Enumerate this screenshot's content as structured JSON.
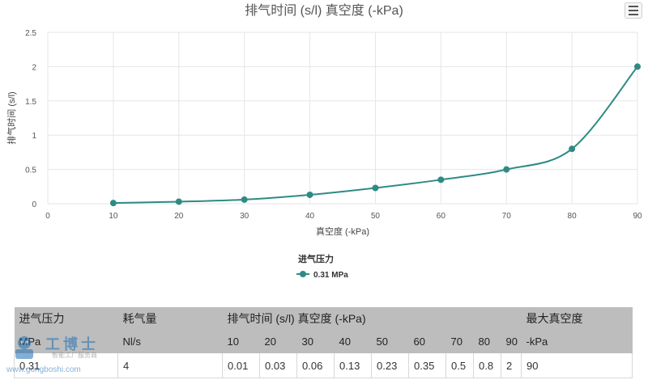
{
  "chart_data": {
    "type": "line",
    "title": "排气时间 (s/l) 真空度 (-kPa)",
    "xlabel": "真空度 (-kPa)",
    "ylabel": "排气时间 (s/l)",
    "xlim": [
      0,
      90
    ],
    "ylim": [
      0,
      2.5
    ],
    "x_ticks": [
      "0",
      "10",
      "20",
      "30",
      "40",
      "50",
      "60",
      "70",
      "80",
      "90"
    ],
    "y_ticks": [
      "0",
      "0.5",
      "1",
      "1.5",
      "2",
      "2.5"
    ],
    "grid": true,
    "legend_title": "进气压力",
    "legend_position": "bottom-center",
    "series": [
      {
        "name": "0.31 MPa",
        "color": "#2e8b84",
        "x": [
          10,
          20,
          30,
          40,
          50,
          60,
          70,
          80,
          90
        ],
        "y": [
          0.01,
          0.03,
          0.06,
          0.13,
          0.23,
          0.35,
          0.5,
          0.8,
          2
        ]
      }
    ]
  },
  "menu_icon": "hamburger-menu-icon",
  "table": {
    "col_intake_pressure": "进气压力",
    "col_air_consumption": "耗气量",
    "col_exhaust_time": "排气时间 (s/l) 真空度 (-kPa)",
    "col_max_vacuum": "最大真空度",
    "unit_intake_pressure": "MPa",
    "unit_air_consumption": "Nl/s",
    "vacuum_levels": [
      "10",
      "20",
      "30",
      "40",
      "50",
      "60",
      "70",
      "80",
      "90"
    ],
    "unit_max_vacuum": "-kPa",
    "row": {
      "intake_pressure": "0.31",
      "air_consumption": "4",
      "times": [
        "0.01",
        "0.03",
        "0.06",
        "0.13",
        "0.23",
        "0.35",
        "0.5",
        "0.8",
        "2"
      ],
      "max_vacuum": "90"
    }
  },
  "watermark": {
    "brand": "工博士",
    "tagline": "智能工厂服务商",
    "url": "www.gongboshi.com"
  }
}
